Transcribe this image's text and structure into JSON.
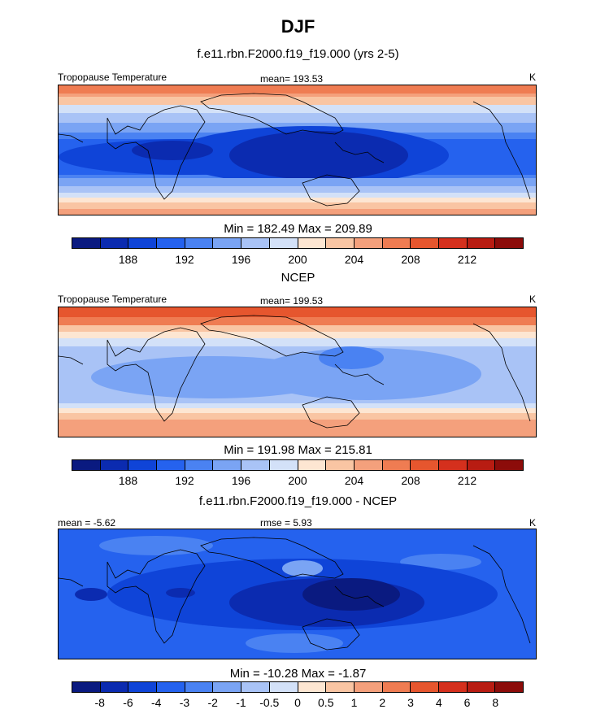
{
  "season": "DJF",
  "panels": [
    {
      "title": "f.e11.rbn.F2000.f19_f19.000 (yrs 2-5)",
      "left_label": "Tropopause Temperature",
      "mean_label": "mean= 193.53",
      "units": "K",
      "minmax": "Min = 182.49 Max = 209.89",
      "type": "abs"
    },
    {
      "title": "NCEP",
      "left_label": "Tropopause Temperature",
      "mean_label": "mean= 199.53",
      "units": "K",
      "minmax": "Min = 191.98 Max = 215.81",
      "type": "ncep"
    },
    {
      "title": "f.e11.rbn.F2000.f19_f19.000 - NCEP",
      "left_label": "mean =  -5.62",
      "mean_label": "rmse =   5.93",
      "units": "K",
      "minmax": "Min = -10.28 Max =  -1.87",
      "type": "diff"
    }
  ],
  "colorbar_colors": [
    "#0a1a80",
    "#0b2bb0",
    "#0f44d8",
    "#2562ee",
    "#4a82f2",
    "#7aa4f4",
    "#a9c3f6",
    "#d3e1f8",
    "#fde6d2",
    "#f9c5a3",
    "#f4a07c",
    "#ef7c52",
    "#e6562e",
    "#d5301d",
    "#b81c12",
    "#8c0c0a"
  ],
  "abs_colorbar_labels": [
    "188",
    "192",
    "196",
    "200",
    "204",
    "208",
    "212"
  ],
  "diff_colorbar_labels": [
    "-8",
    "-6",
    "-4",
    "-3",
    "-2",
    "-1",
    "-0.5",
    "0",
    "0.5",
    "1",
    "2",
    "3",
    "4",
    "6",
    "8"
  ]
}
